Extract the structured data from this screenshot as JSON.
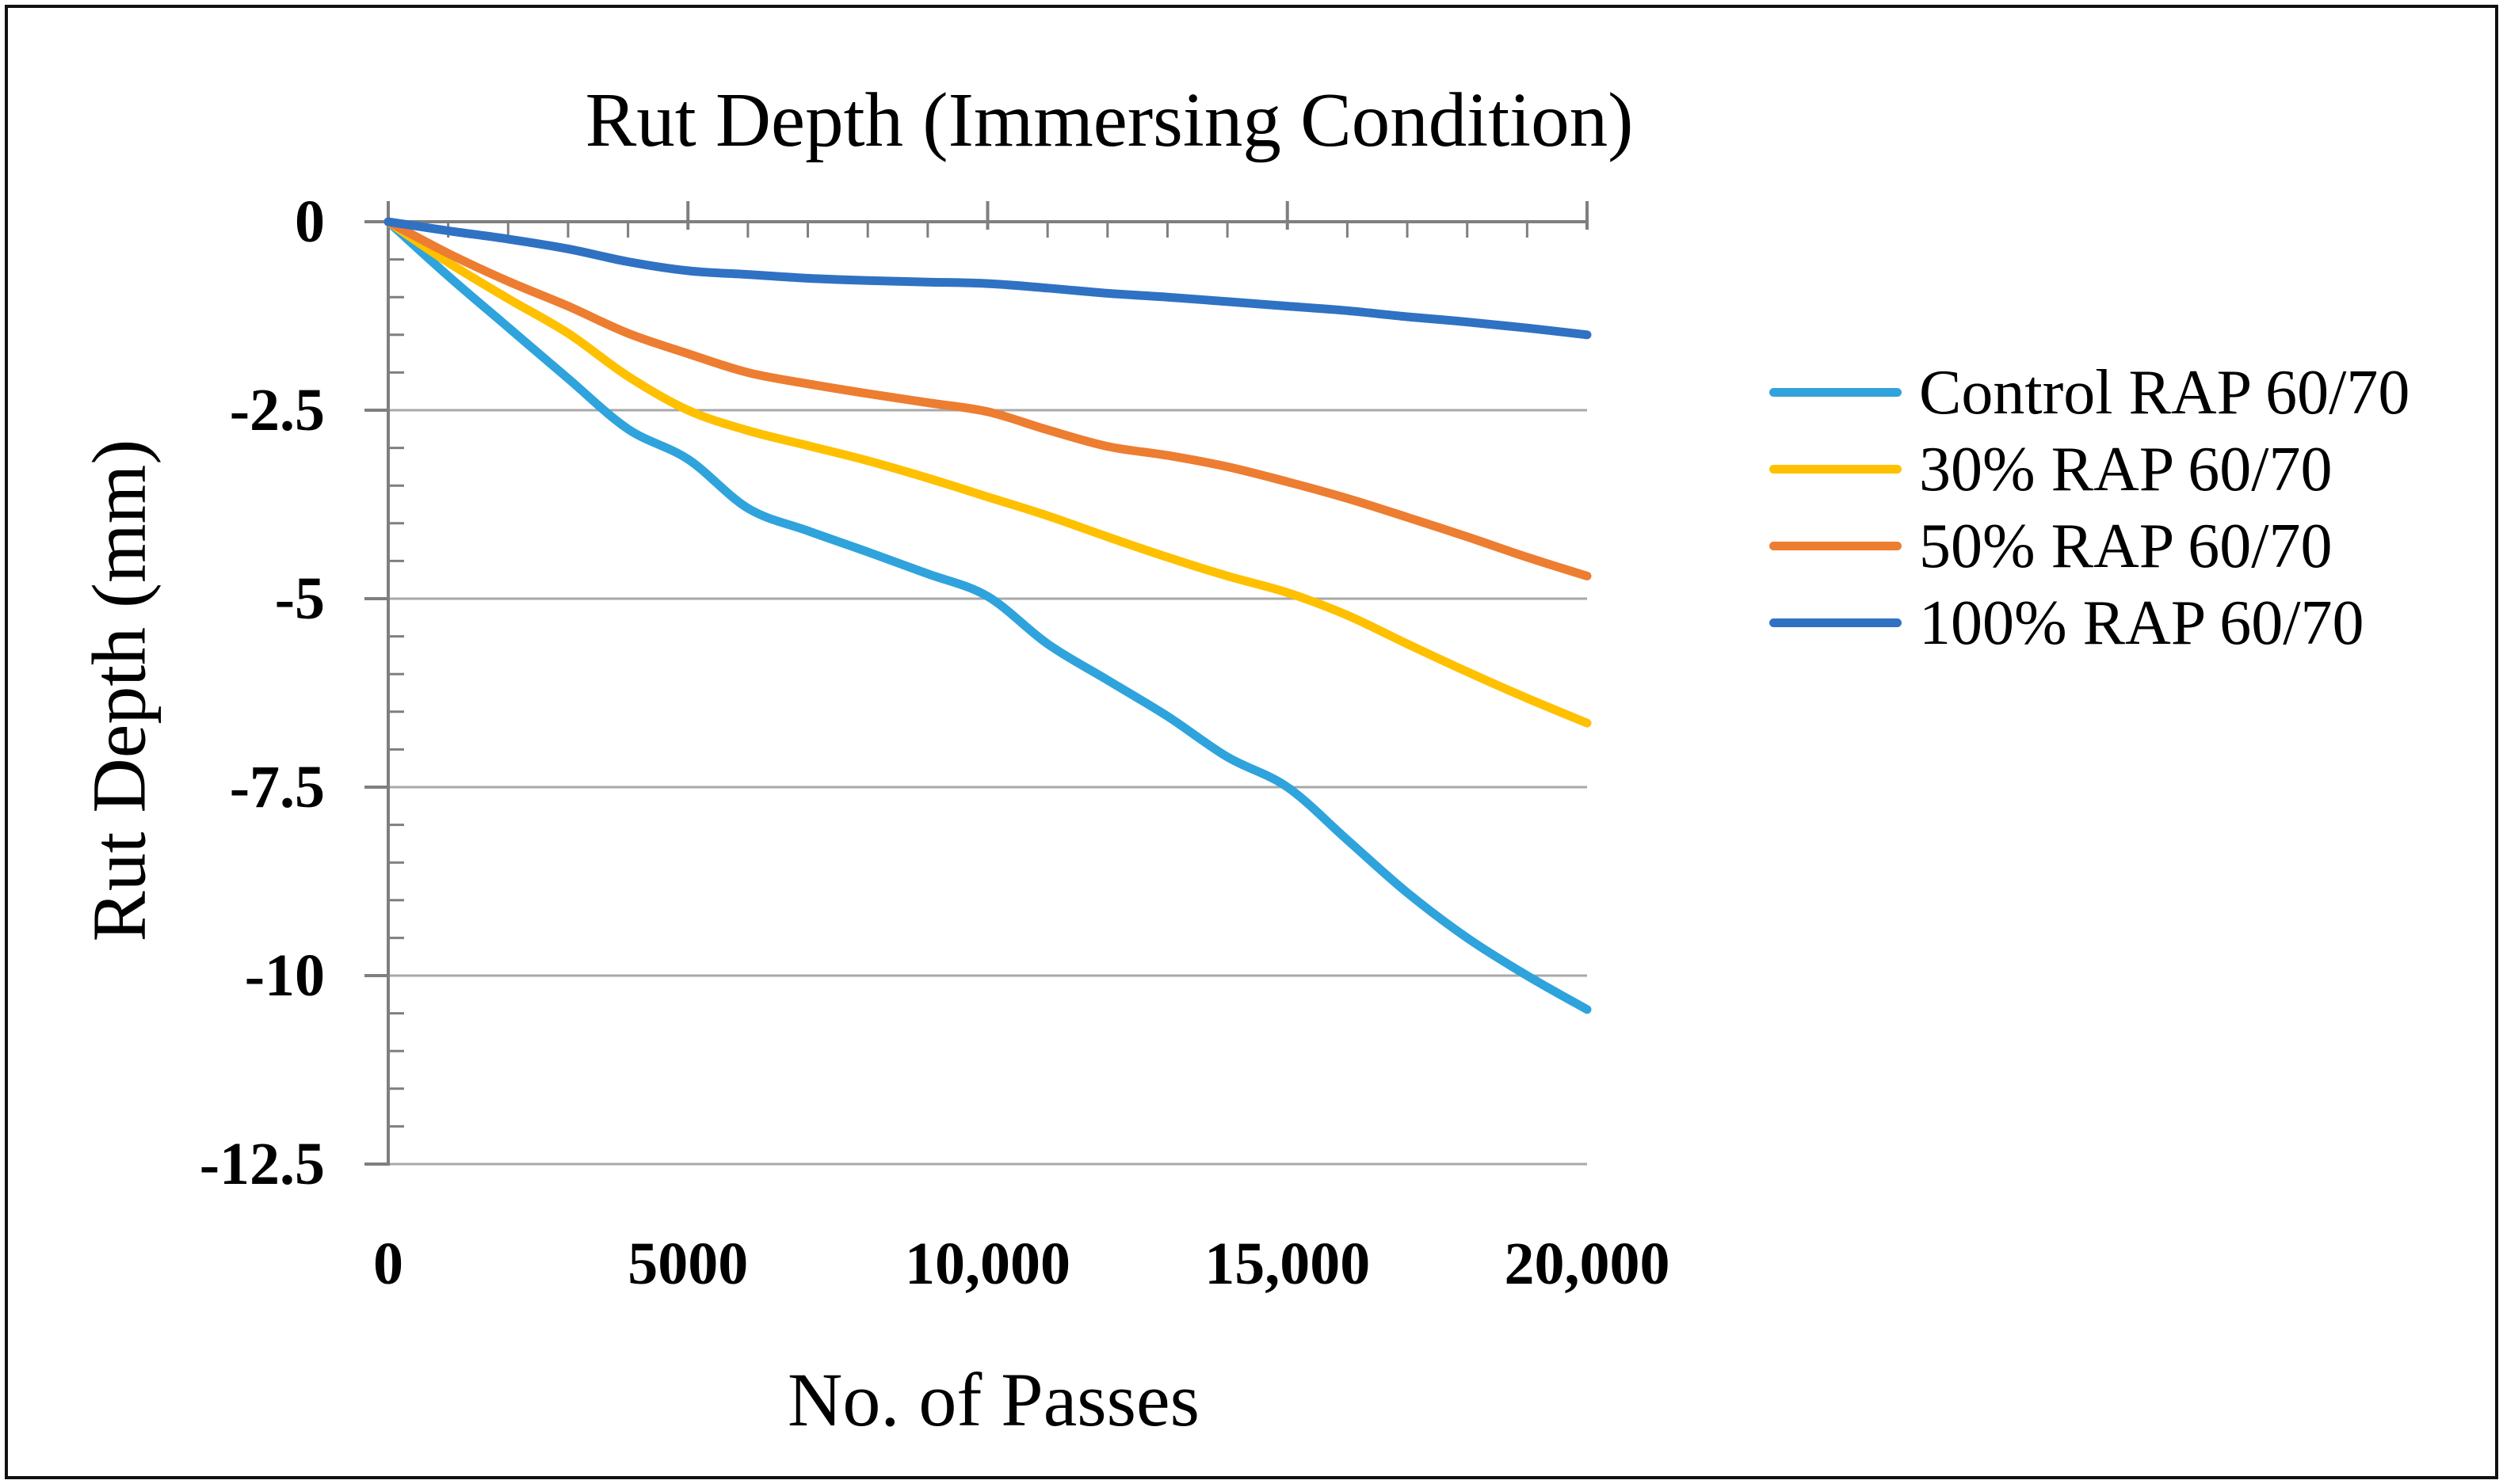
{
  "figure": {
    "title": "Rut Depth (Immersing Condition)",
    "x_axis_title": "No. of Passes",
    "y_axis_title": "Rut Depth (mm)"
  },
  "colors": {
    "background": "#FFFFFF",
    "border": "#111111",
    "gridline": "#A8A8A8",
    "axis": "#7F7F7F",
    "text": "#000000",
    "series_control": "#2FA3DC",
    "series_30": "#FFC000",
    "series_50": "#ED7D31",
    "series_100": "#2F72C3"
  },
  "chart_data": {
    "type": "line",
    "title": "Rut Depth (Immersing Condition)",
    "xlabel": "No. of Passes",
    "ylabel": "Rut Depth (mm)",
    "xlim": [
      0,
      20000
    ],
    "ylim": [
      -12.5,
      0
    ],
    "grid": "horizontal-major",
    "legend_position": "right",
    "x_major_ticks": [
      0,
      5000,
      10000,
      15000,
      20000
    ],
    "x_tick_labels": [
      "0",
      "5000",
      "10,000",
      "15,000",
      "20,000"
    ],
    "y_major_ticks": [
      0,
      -2.5,
      -5,
      -7.5,
      -10,
      -12.5
    ],
    "y_tick_labels": [
      "0",
      "-2.5",
      "-5",
      "-7.5",
      "-10",
      "-12.5"
    ],
    "x_minor_tick_interval": 1000,
    "y_minor_tick_interval": 0.5,
    "x": [
      0,
      1000,
      2000,
      3000,
      4000,
      5000,
      6000,
      7000,
      8000,
      9000,
      10000,
      11000,
      12000,
      13000,
      14000,
      15000,
      16000,
      17000,
      18000,
      19000,
      20000
    ],
    "series": [
      {
        "name": "Control RAP 60/70",
        "color": "#2FA3DC",
        "values": [
          0,
          -0.72,
          -1.4,
          -2.08,
          -2.75,
          -3.15,
          -3.8,
          -4.1,
          -4.38,
          -4.67,
          -4.97,
          -5.6,
          -6.08,
          -6.56,
          -7.1,
          -7.5,
          -8.2,
          -8.9,
          -9.5,
          -10.0,
          -10.45
        ]
      },
      {
        "name": "30% RAP 60/70",
        "color": "#FFC000",
        "values": [
          0,
          -0.54,
          -1.02,
          -1.48,
          -2.05,
          -2.5,
          -2.77,
          -2.97,
          -3.17,
          -3.4,
          -3.65,
          -3.9,
          -4.18,
          -4.45,
          -4.7,
          -4.92,
          -5.22,
          -5.6,
          -5.97,
          -6.32,
          -6.65
        ]
      },
      {
        "name": "50% RAP 60/70",
        "color": "#ED7D31",
        "values": [
          0,
          -0.42,
          -0.79,
          -1.12,
          -1.48,
          -1.75,
          -2.0,
          -2.15,
          -2.28,
          -2.4,
          -2.52,
          -2.76,
          -2.98,
          -3.1,
          -3.25,
          -3.45,
          -3.67,
          -3.92,
          -4.18,
          -4.45,
          -4.7
        ]
      },
      {
        "name": "100% RAP 60/70",
        "color": "#2F72C3",
        "values": [
          0,
          -0.12,
          -0.23,
          -0.36,
          -0.53,
          -0.65,
          -0.7,
          -0.75,
          -0.78,
          -0.8,
          -0.82,
          -0.88,
          -0.95,
          -1.0,
          -1.06,
          -1.12,
          -1.18,
          -1.26,
          -1.33,
          -1.41,
          -1.5
        ]
      }
    ]
  }
}
